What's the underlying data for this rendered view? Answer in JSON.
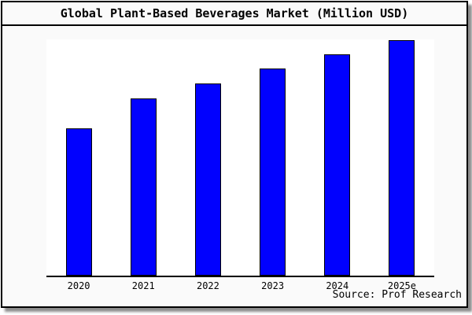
{
  "chart_data": {
    "type": "bar",
    "title": "Global Plant-Based Beverages Market (Million USD)",
    "categories": [
      "2020",
      "2021",
      "2022",
      "2023",
      "2024",
      "2025e"
    ],
    "values": [
      62.5,
      75.3,
      81.6,
      88.0,
      94.0,
      100.0
    ],
    "values_note": "relative bar heights (% of tallest bar); y-axis is unlabeled in the image",
    "bar_heights_pct_of_plot": [
      62.3,
      75.0,
      81.3,
      87.7,
      93.7,
      99.7
    ],
    "xlabel": "",
    "ylabel": "",
    "y_axis_ticks": "none",
    "grid": false,
    "legend": false
  },
  "source": "Source: Prof Research",
  "colors": {
    "bar_fill": "#0101fe",
    "bar_border": "#000000",
    "panel_background": "#fafafa",
    "plot_background": "#ffffff",
    "border": "#000000"
  }
}
